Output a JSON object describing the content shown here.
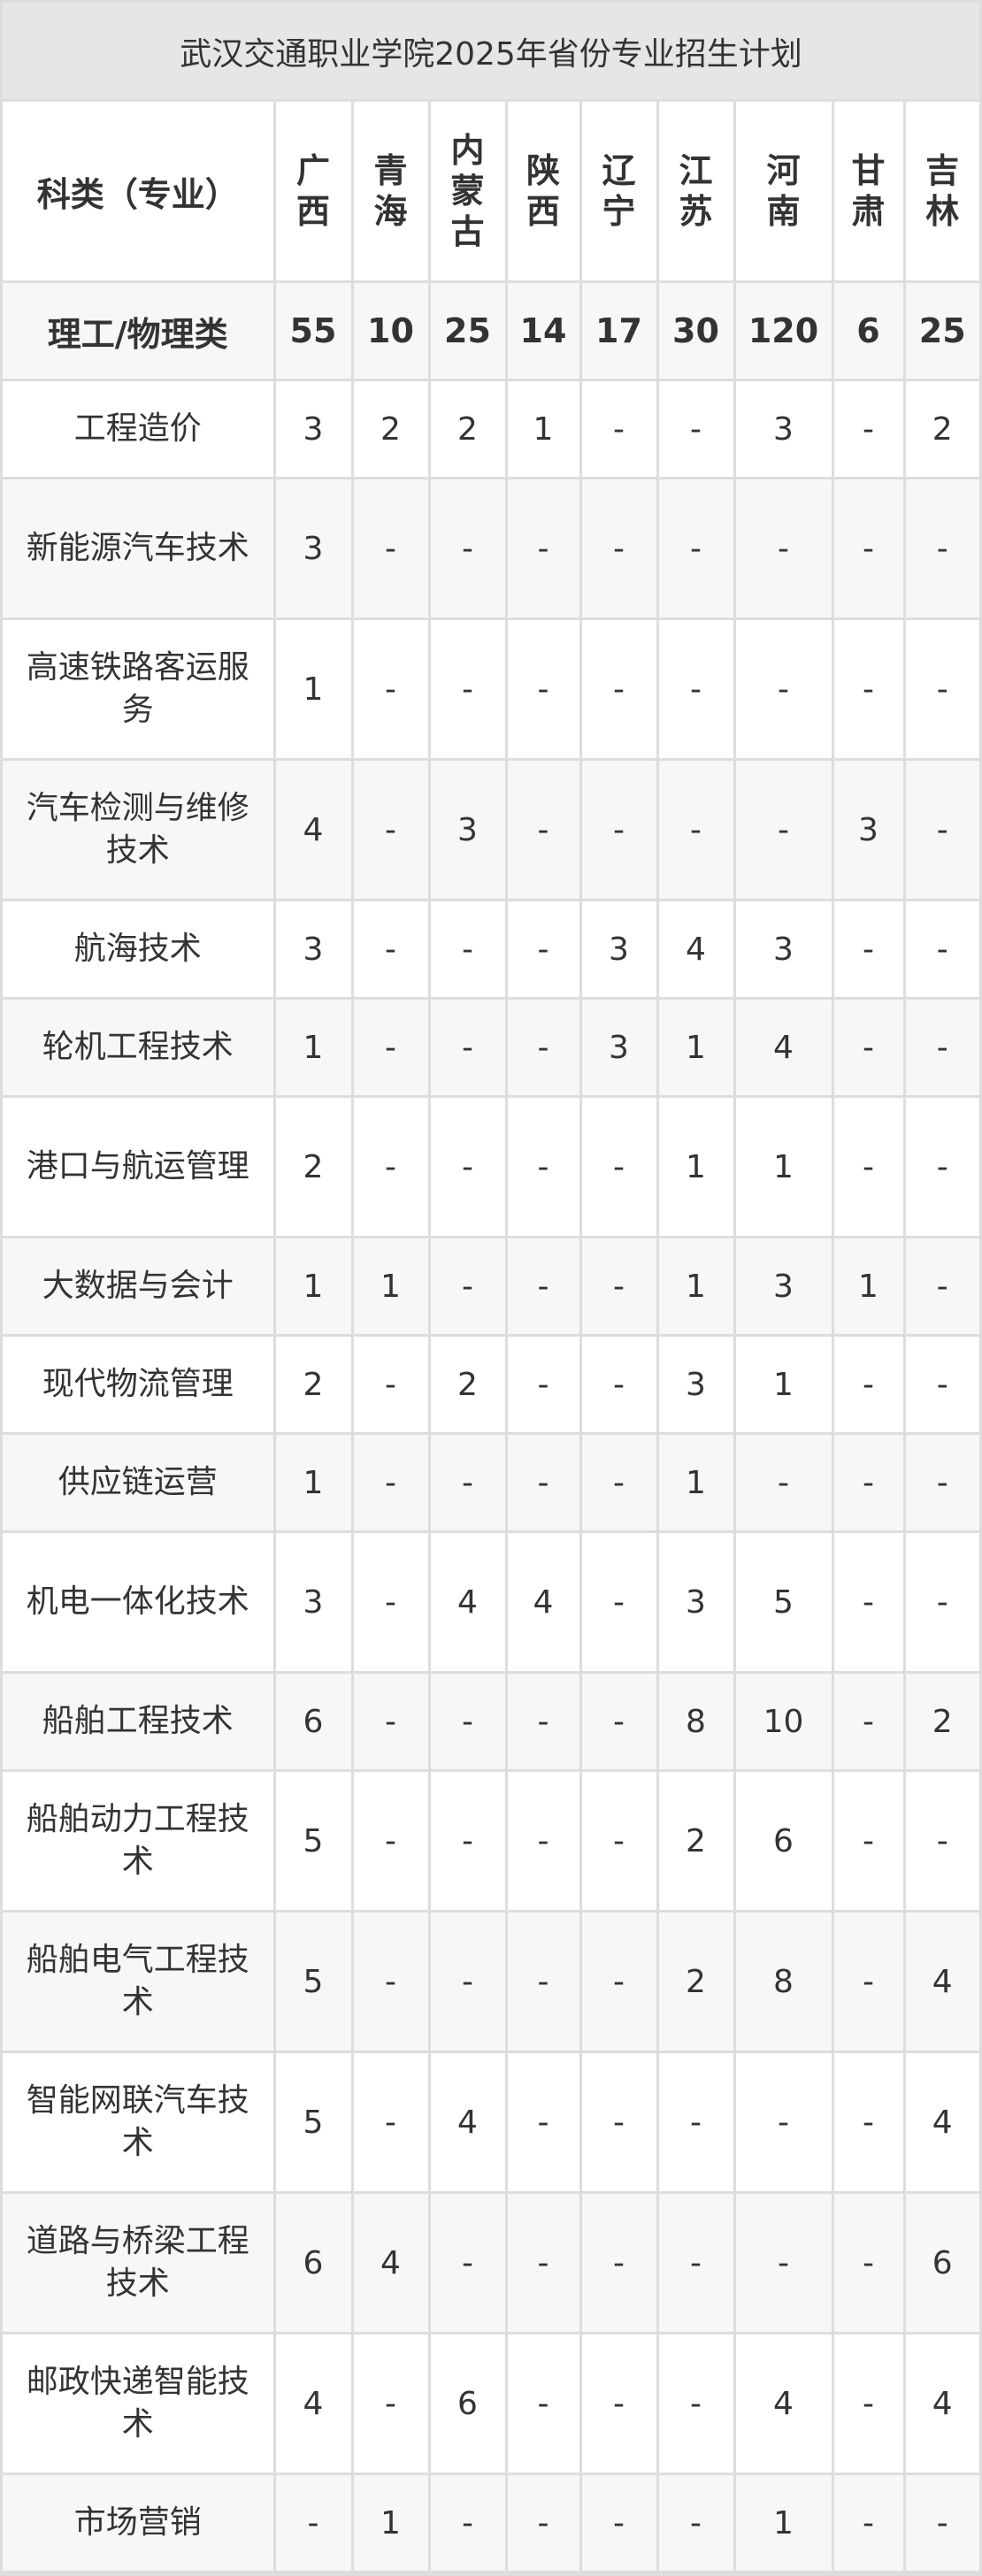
{
  "title": "武汉交通职业学院2025年省份专业招生计划",
  "header": {
    "category_label": "科类（专业）",
    "provinces": [
      "广西",
      "青海",
      "内蒙古",
      "陕西",
      "辽宁",
      "江苏",
      "河南",
      "甘肃",
      "吉林"
    ]
  },
  "total": {
    "label": "理工/物理类",
    "values": [
      "55",
      "10",
      "25",
      "14",
      "17",
      "30",
      "120",
      "6",
      "25"
    ]
  },
  "rows": [
    {
      "major": "工程造价",
      "values": [
        "3",
        "2",
        "2",
        "1",
        "-",
        "-",
        "3",
        "-",
        "2"
      ]
    },
    {
      "major": "新能源汽车技术",
      "values": [
        "3",
        "-",
        "-",
        "-",
        "-",
        "-",
        "-",
        "-",
        "-"
      ]
    },
    {
      "major": "高速铁路客运服务",
      "values": [
        "1",
        "-",
        "-",
        "-",
        "-",
        "-",
        "-",
        "-",
        "-"
      ]
    },
    {
      "major": "汽车检测与维修技术",
      "values": [
        "4",
        "-",
        "3",
        "-",
        "-",
        "-",
        "-",
        "3",
        "-"
      ]
    },
    {
      "major": "航海技术",
      "values": [
        "3",
        "-",
        "-",
        "-",
        "3",
        "4",
        "3",
        "-",
        "-"
      ]
    },
    {
      "major": "轮机工程技术",
      "values": [
        "1",
        "-",
        "-",
        "-",
        "3",
        "1",
        "4",
        "-",
        "-"
      ]
    },
    {
      "major": "港口与航运管理",
      "values": [
        "2",
        "-",
        "-",
        "-",
        "-",
        "1",
        "1",
        "-",
        "-"
      ]
    },
    {
      "major": "大数据与会计",
      "values": [
        "1",
        "1",
        "-",
        "-",
        "-",
        "1",
        "3",
        "1",
        "-"
      ]
    },
    {
      "major": "现代物流管理",
      "values": [
        "2",
        "-",
        "2",
        "-",
        "-",
        "3",
        "1",
        "-",
        "-"
      ]
    },
    {
      "major": "供应链运营",
      "values": [
        "1",
        "-",
        "-",
        "-",
        "-",
        "1",
        "-",
        "-",
        "-"
      ]
    },
    {
      "major": "机电一体化技术",
      "values": [
        "3",
        "-",
        "4",
        "4",
        "-",
        "3",
        "5",
        "-",
        "-"
      ]
    },
    {
      "major": "船舶工程技术",
      "values": [
        "6",
        "-",
        "-",
        "-",
        "-",
        "8",
        "10",
        "-",
        "2"
      ]
    },
    {
      "major": "船舶动力工程技术",
      "values": [
        "5",
        "-",
        "-",
        "-",
        "-",
        "2",
        "6",
        "-",
        "-"
      ]
    },
    {
      "major": "船舶电气工程技术",
      "values": [
        "5",
        "-",
        "-",
        "-",
        "-",
        "2",
        "8",
        "-",
        "4"
      ]
    },
    {
      "major": "智能网联汽车技术",
      "values": [
        "5",
        "-",
        "4",
        "-",
        "-",
        "-",
        "-",
        "-",
        "4"
      ]
    },
    {
      "major": "道路与桥梁工程技术",
      "values": [
        "6",
        "4",
        "-",
        "-",
        "-",
        "-",
        "-",
        "-",
        "6"
      ]
    },
    {
      "major": "邮政快递智能技术",
      "values": [
        "4",
        "-",
        "6",
        "-",
        "-",
        "-",
        "4",
        "-",
        "4"
      ]
    },
    {
      "major": "市场营销",
      "values": [
        "-",
        "1",
        "-",
        "-",
        "-",
        "-",
        "1",
        "-",
        "-"
      ]
    }
  ]
}
